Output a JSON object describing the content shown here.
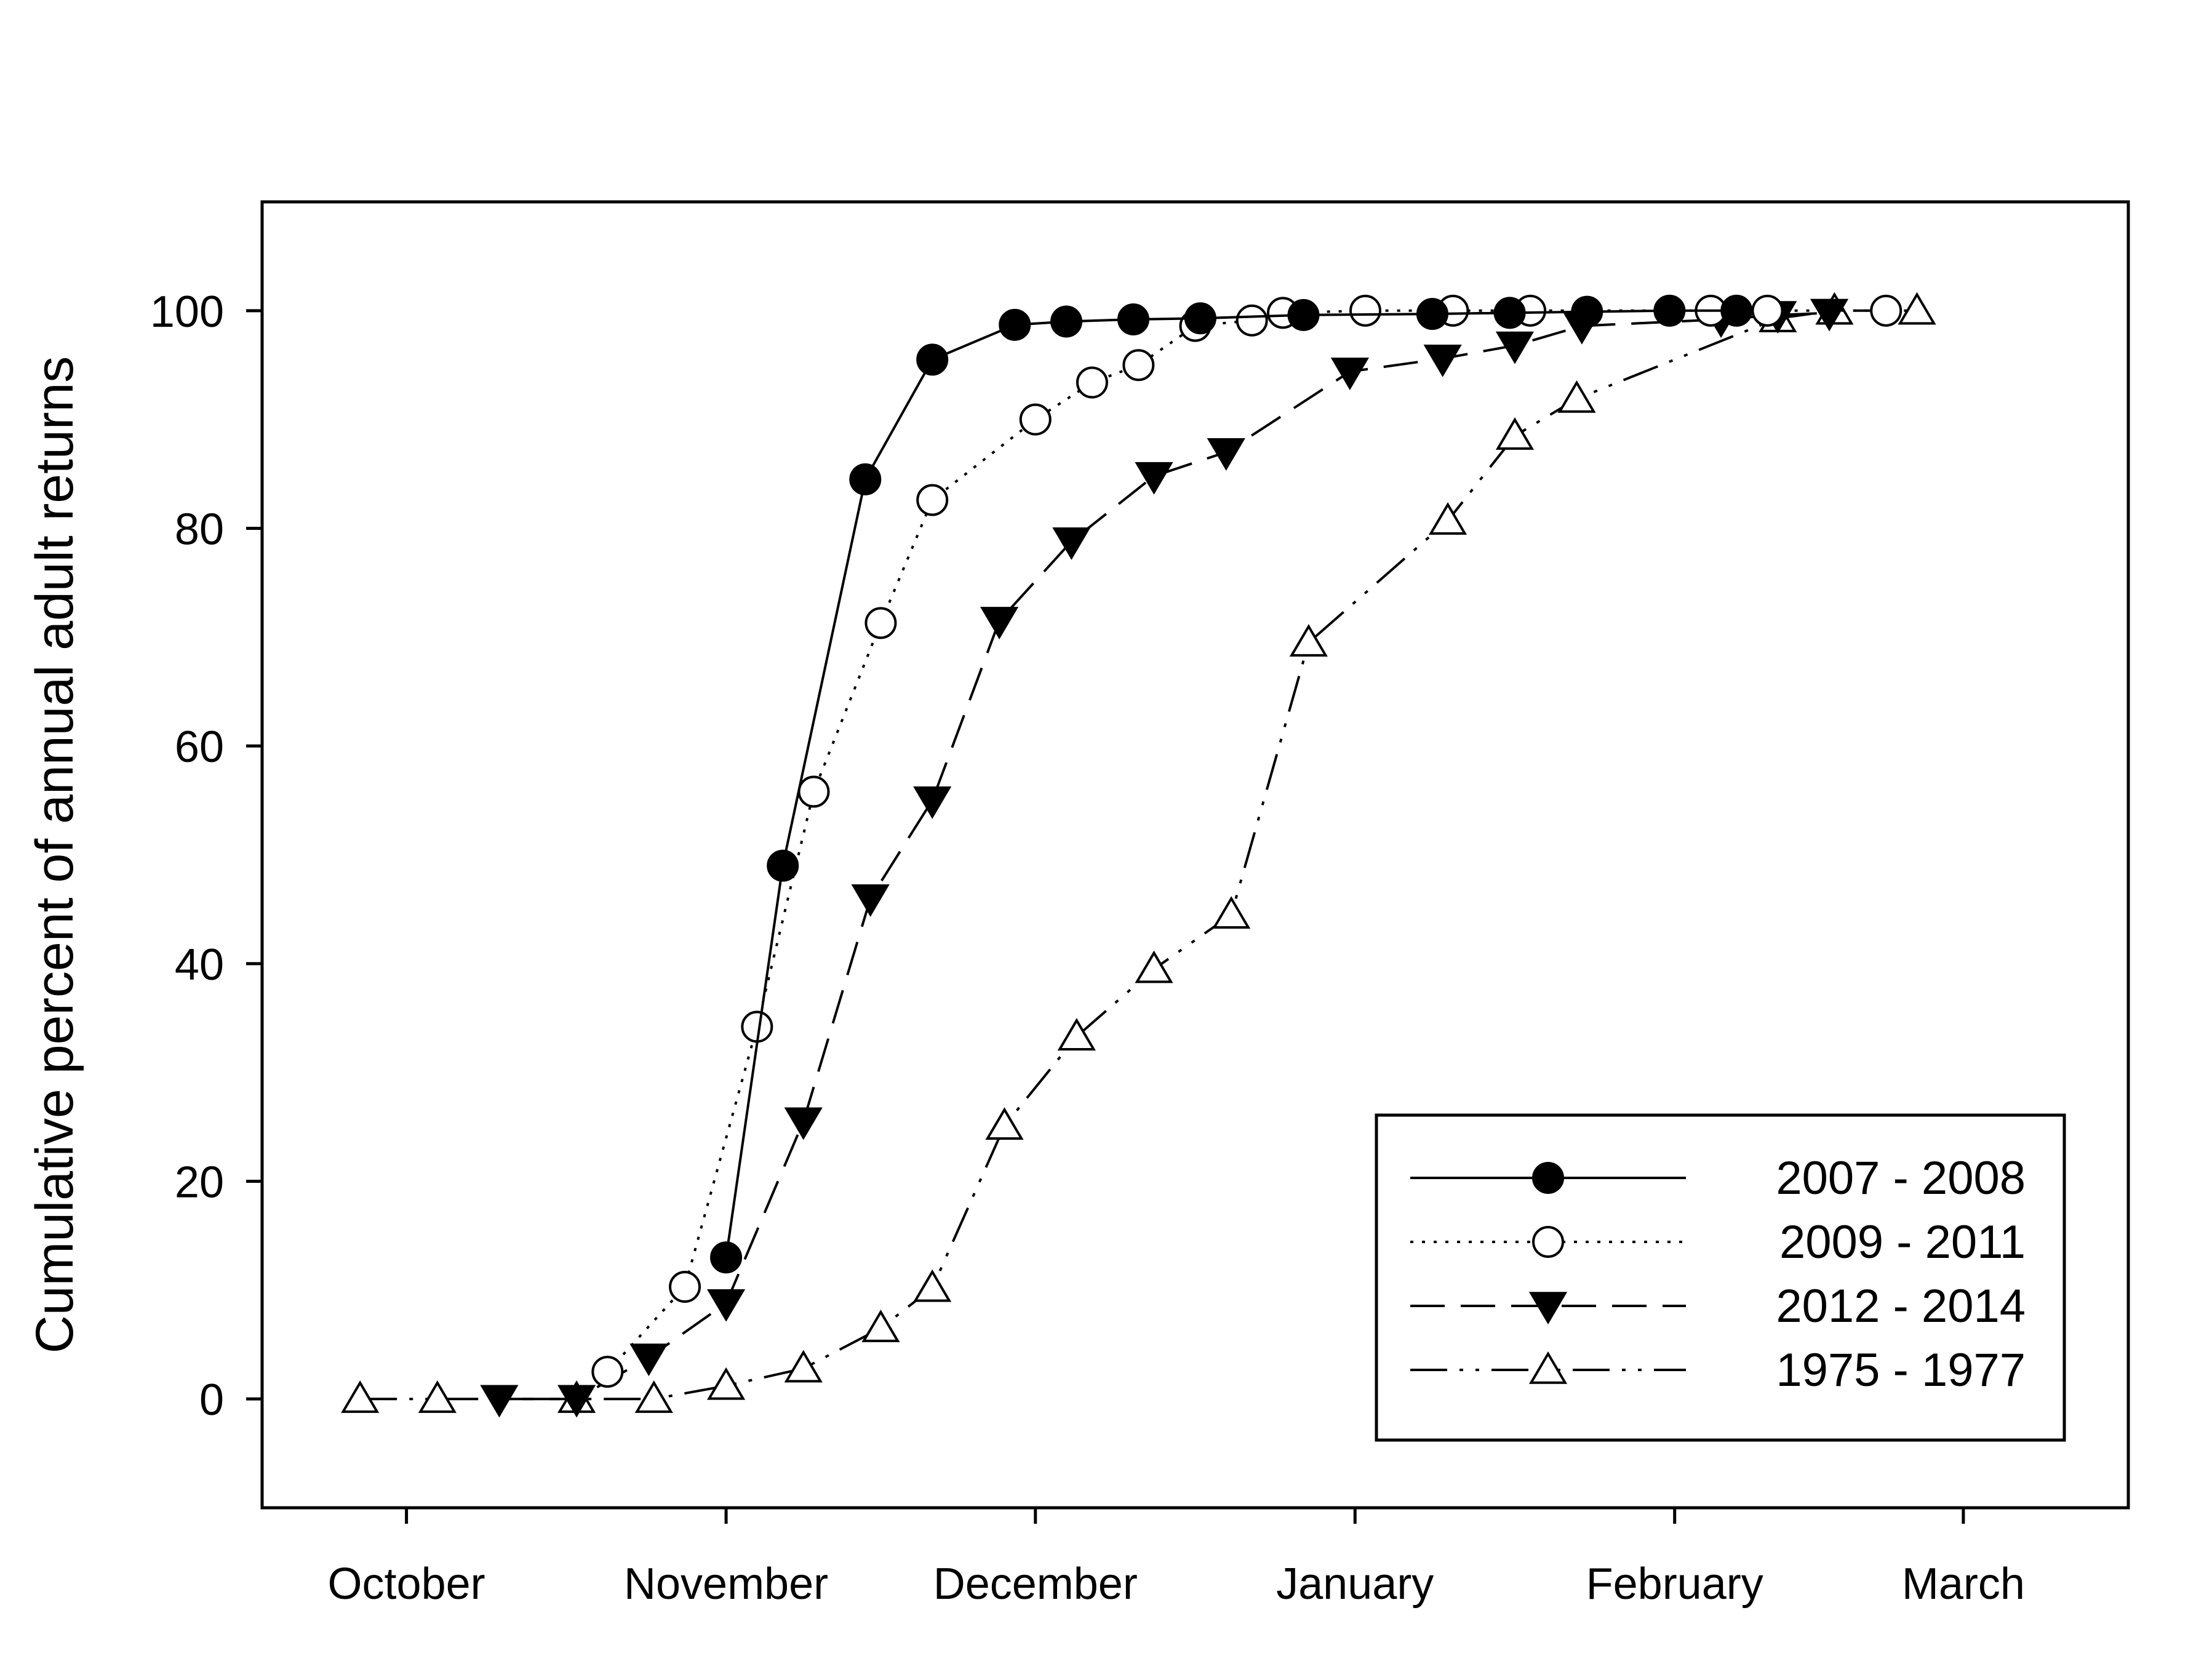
{
  "chart_data": {
    "type": "line",
    "title": "",
    "xlabel": "",
    "ylabel": "Cumulative percent of annual adult returns",
    "x_ticks": [
      "October",
      "November",
      "December",
      "January",
      "February",
      "March"
    ],
    "x_range_days": [
      -14,
      167
    ],
    "ylim": [
      -10,
      110
    ],
    "y_ticks": [
      0,
      20,
      40,
      60,
      80,
      100
    ],
    "grid": false,
    "legend_position": "bottom-right",
    "series": [
      {
        "name": "2007 - 2008",
        "line_style": "solid",
        "marker": "filled-circle",
        "points": [
          {
            "x": 31,
            "y": 13
          },
          {
            "x": 36.5,
            "y": 49
          },
          {
            "x": 44.5,
            "y": 84.5
          },
          {
            "x": 51,
            "y": 95.5
          },
          {
            "x": 59,
            "y": 98.7
          },
          {
            "x": 64,
            "y": 99
          },
          {
            "x": 70.5,
            "y": 99.2
          },
          {
            "x": 77,
            "y": 99.3
          },
          {
            "x": 87,
            "y": 99.6
          },
          {
            "x": 99.5,
            "y": 99.7
          },
          {
            "x": 107,
            "y": 99.8
          },
          {
            "x": 114.5,
            "y": 99.9
          },
          {
            "x": 122.5,
            "y": 100
          },
          {
            "x": 129,
            "y": 100
          }
        ]
      },
      {
        "name": "2009 - 2011",
        "line_style": "dotted",
        "marker": "open-circle",
        "points": [
          {
            "x": 19.5,
            "y": 2.5
          },
          {
            "x": 27,
            "y": 10.3
          },
          {
            "x": 34,
            "y": 34.2
          },
          {
            "x": 39.5,
            "y": 55.8
          },
          {
            "x": 46,
            "y": 71.3
          },
          {
            "x": 51,
            "y": 82.6
          },
          {
            "x": 61,
            "y": 90
          },
          {
            "x": 66.5,
            "y": 93.4
          },
          {
            "x": 71,
            "y": 95
          },
          {
            "x": 76.5,
            "y": 98.6
          },
          {
            "x": 82,
            "y": 99.1
          },
          {
            "x": 85,
            "y": 99.8
          },
          {
            "x": 93,
            "y": 100
          },
          {
            "x": 101.5,
            "y": 100
          },
          {
            "x": 109,
            "y": 100
          },
          {
            "x": 126.5,
            "y": 100
          },
          {
            "x": 132,
            "y": 100
          },
          {
            "x": 143.5,
            "y": 100
          }
        ]
      },
      {
        "name": "2012 - 2014",
        "line_style": "dashed",
        "marker": "filled-triangle-down",
        "points": [
          {
            "x": 9,
            "y": 0
          },
          {
            "x": 16.5,
            "y": 0
          },
          {
            "x": 23.5,
            "y": 3.8
          },
          {
            "x": 31,
            "y": 8.8
          },
          {
            "x": 38.5,
            "y": 25.5
          },
          {
            "x": 45,
            "y": 46
          },
          {
            "x": 51,
            "y": 55
          },
          {
            "x": 57.5,
            "y": 71.5
          },
          {
            "x": 64.5,
            "y": 78.8
          },
          {
            "x": 72.5,
            "y": 84.8
          },
          {
            "x": 79.5,
            "y": 87
          },
          {
            "x": 91.5,
            "y": 94.4
          },
          {
            "x": 100.5,
            "y": 95.6
          },
          {
            "x": 107.5,
            "y": 96.8
          },
          {
            "x": 114,
            "y": 98.6
          },
          {
            "x": 127.5,
            "y": 99.2
          },
          {
            "x": 133,
            "y": 99.6
          },
          {
            "x": 138,
            "y": 99.8
          }
        ]
      },
      {
        "name": "1975 - 1977",
        "line_style": "dash-dot-dot",
        "marker": "open-triangle-up",
        "points": [
          {
            "x": -4.5,
            "y": 0
          },
          {
            "x": 3,
            "y": 0
          },
          {
            "x": 16.5,
            "y": 0
          },
          {
            "x": 24,
            "y": 0
          },
          {
            "x": 31,
            "y": 1.2
          },
          {
            "x": 38.5,
            "y": 2.8
          },
          {
            "x": 46,
            "y": 6.5
          },
          {
            "x": 51,
            "y": 10.2
          },
          {
            "x": 58,
            "y": 25.1
          },
          {
            "x": 65,
            "y": 33.3
          },
          {
            "x": 72.5,
            "y": 39.5
          },
          {
            "x": 80,
            "y": 44.5
          },
          {
            "x": 87.5,
            "y": 69.5
          },
          {
            "x": 101,
            "y": 80.7
          },
          {
            "x": 107.5,
            "y": 88.5
          },
          {
            "x": 113.5,
            "y": 91.9
          },
          {
            "x": 133,
            "y": 99.3
          },
          {
            "x": 138.5,
            "y": 100
          },
          {
            "x": 146.5,
            "y": 100
          }
        ]
      }
    ]
  }
}
